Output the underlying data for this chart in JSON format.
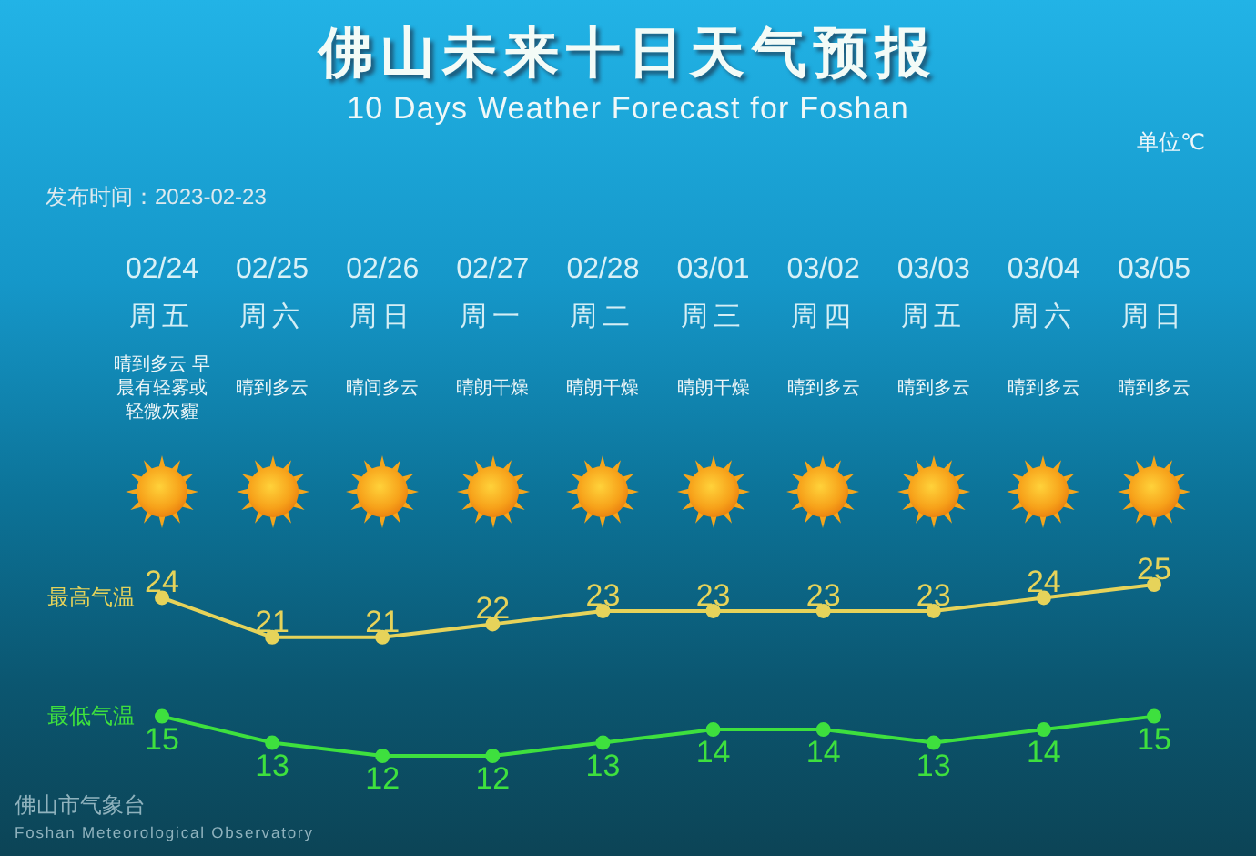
{
  "chart_data": {
    "type": "line",
    "title": "佛山未来十日天气预报",
    "subtitle": "10 Days Weather Forecast for Foshan",
    "ylabel": "单位℃",
    "categories": [
      "02/24\n周五",
      "02/25\n周六",
      "02/26\n周日",
      "02/27\n周一",
      "02/28\n周二",
      "03/01\n周三",
      "03/02\n周四",
      "03/03\n周五",
      "03/04\n周六",
      "03/05\n周日"
    ],
    "series": [
      {
        "name": "最高气温",
        "color": "#e6d35a",
        "values": [
          24,
          21,
          21,
          22,
          23,
          23,
          23,
          23,
          24,
          25
        ]
      },
      {
        "name": "最低气温",
        "color": "#3ee03e",
        "values": [
          15,
          13,
          12,
          12,
          13,
          14,
          14,
          13,
          14,
          15
        ]
      }
    ],
    "marker": "circle",
    "data_labels": true,
    "annotations": [
      "发布时间：2023-02-23",
      "晴到多云 早晨有轻雾或轻微灰霾",
      "晴到多云",
      "晴间多云",
      "晴朗干燥",
      "晴朗干燥",
      "晴朗干燥",
      "晴到多云",
      "晴到多云",
      "晴到多云",
      "晴到多云",
      "佛山市气象台",
      "Foshan Meteorological Observatory"
    ]
  }
}
